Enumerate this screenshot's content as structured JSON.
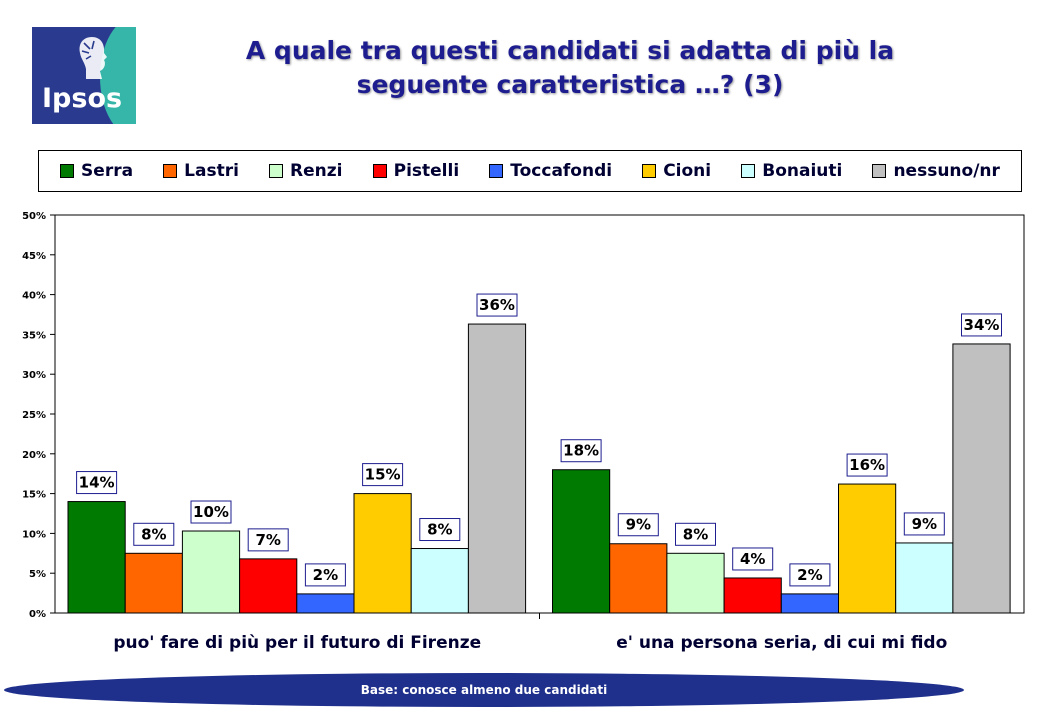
{
  "logo": {
    "text": "Ipsos",
    "icon": "tree-head-icon"
  },
  "header": {
    "title_line1": "A quale tra questi candidati si adatta di più la",
    "title_line2": "seguente caratteristica …? (3)"
  },
  "legend": {
    "items": [
      {
        "label": "Serra",
        "color": "#007a00"
      },
      {
        "label": "Lastri",
        "color": "#ff6600"
      },
      {
        "label": "Renzi",
        "color": "#ccffcc"
      },
      {
        "label": "Pistelli",
        "color": "#ff0000"
      },
      {
        "label": "Toccafondi",
        "color": "#3366ff"
      },
      {
        "label": "Cioni",
        "color": "#ffcc00"
      },
      {
        "label": "Bonaiuti",
        "color": "#ccffff"
      },
      {
        "label": "nessuno/nr",
        "color": "#c0c0c0"
      }
    ]
  },
  "chart_data": {
    "type": "bar",
    "categories": [
      "puo' fare di più per il futuro di Firenze",
      "e' una persona seria, di cui mi fido"
    ],
    "series": [
      {
        "name": "Serra",
        "values": [
          14,
          18
        ],
        "labels": [
          "14%",
          "18%"
        ]
      },
      {
        "name": "Lastri",
        "values": [
          7.5,
          8.7
        ],
        "labels": [
          "8%",
          "9%"
        ]
      },
      {
        "name": "Renzi",
        "values": [
          10.3,
          7.5
        ],
        "labels": [
          "10%",
          "8%"
        ]
      },
      {
        "name": "Pistelli",
        "values": [
          6.8,
          4.4
        ],
        "labels": [
          "7%",
          "4%"
        ]
      },
      {
        "name": "Toccafondi",
        "values": [
          2.4,
          2.4
        ],
        "labels": [
          "2%",
          "2%"
        ]
      },
      {
        "name": "Cioni",
        "values": [
          15,
          16.2
        ],
        "labels": [
          "15%",
          "16%"
        ]
      },
      {
        "name": "Bonaiuti",
        "values": [
          8.1,
          8.8
        ],
        "labels": [
          "8%",
          "9%"
        ]
      },
      {
        "name": "nessuno/nr",
        "values": [
          36.3,
          33.8
        ],
        "labels": [
          "36%",
          "34%"
        ]
      }
    ],
    "yticks": [
      "0%",
      "5%",
      "10%",
      "15%",
      "20%",
      "25%",
      "30%",
      "35%",
      "40%",
      "45%",
      "50%"
    ],
    "ylim": [
      0,
      50
    ],
    "grid": false,
    "legend_position": "top"
  },
  "footer": {
    "text": "Base: conosce almeno due candidati"
  }
}
